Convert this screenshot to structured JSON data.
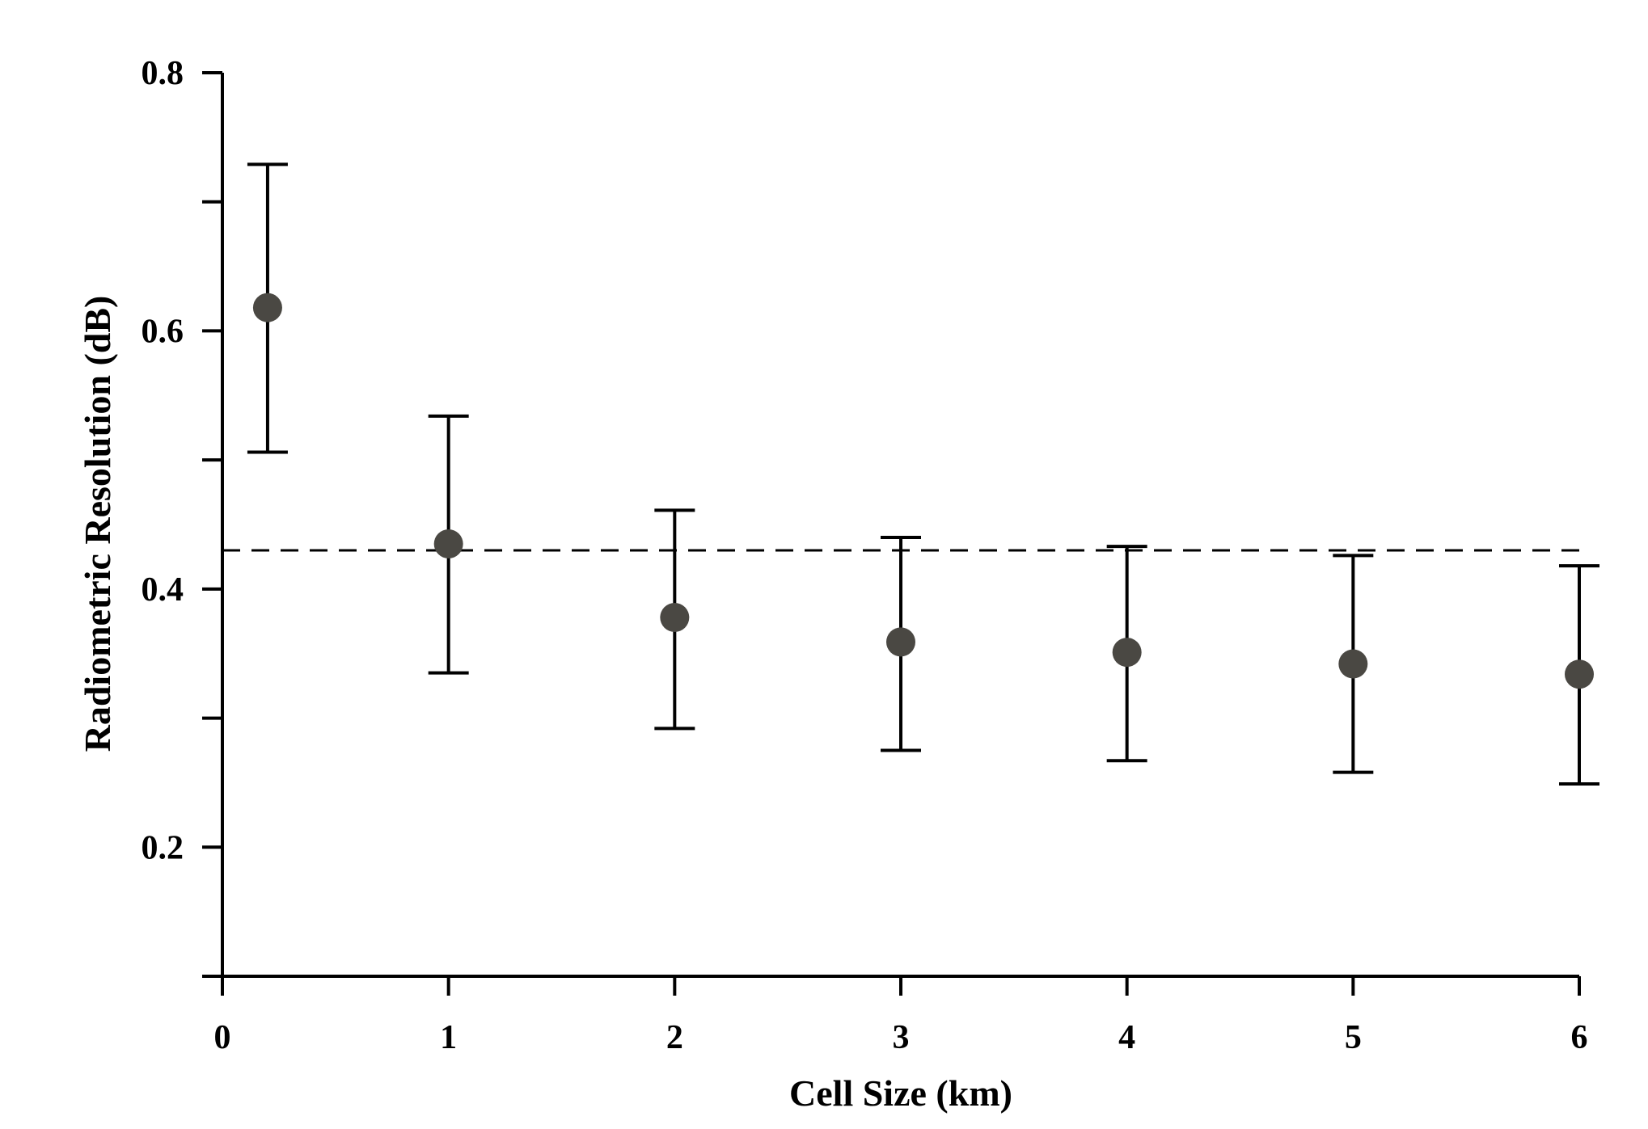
{
  "chart_data": {
    "type": "scatter",
    "title": "",
    "xlabel": "Cell Size (km)",
    "ylabel": "Radiometric Resolution (dB)",
    "xlim": [
      0,
      6
    ],
    "ylim": [
      0.1,
      0.8
    ],
    "x_ticks": [
      "0",
      "1",
      "2",
      "3",
      "4",
      "5",
      "6"
    ],
    "y_ticks": [
      "0.2",
      "0.4",
      "0.6",
      "0.8"
    ],
    "x_tick_values": [
      0,
      1,
      2,
      3,
      4,
      5,
      6
    ],
    "y_tick_values": [
      0.2,
      0.4,
      0.6,
      0.8
    ],
    "y_minor_tick_values": [
      0.1,
      0.3,
      0.5,
      0.7
    ],
    "grid": false,
    "legend": "none",
    "reference_line": {
      "y": 0.43,
      "style": "dashed"
    },
    "series": [
      {
        "x": [
          0.2,
          1,
          2,
          3,
          4,
          5,
          6
        ],
        "y": [
          0.618,
          0.435,
          0.378,
          0.359,
          0.351,
          0.342,
          0.334
        ],
        "y_lower": [
          0.506,
          0.335,
          0.292,
          0.275,
          0.267,
          0.258,
          0.249
        ],
        "y_upper": [
          0.729,
          0.534,
          0.461,
          0.44,
          0.433,
          0.426,
          0.418
        ],
        "marker_color": "#4a4843"
      }
    ]
  }
}
